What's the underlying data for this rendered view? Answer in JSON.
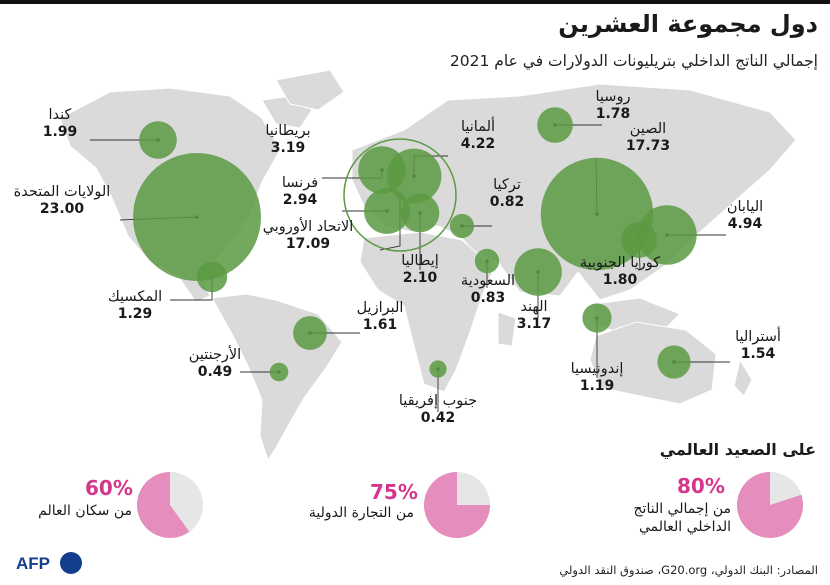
{
  "title": "دول مجموعة العشرين",
  "subtitle": "إجمالي الناتج الداخلي بتريليونات الدولارات في عام 2021",
  "chart_data": {
    "type": "bubble-map",
    "unit": "تريليونات الدولارات",
    "year": "2021",
    "points": [
      {
        "name": "الولايات المتحدة",
        "value": "23.00"
      },
      {
        "name": "الصين",
        "value": "17.73"
      },
      {
        "name": "الاتحاد الأوروبي",
        "value": "17.09"
      },
      {
        "name": "اليابان",
        "value": "4.94"
      },
      {
        "name": "ألمانيا",
        "value": "4.22"
      },
      {
        "name": "بريطانيا",
        "value": "3.19"
      },
      {
        "name": "الهند",
        "value": "3.17"
      },
      {
        "name": "فرنسا",
        "value": "2.94"
      },
      {
        "name": "إيطاليا",
        "value": "2.10"
      },
      {
        "name": "كندا",
        "value": "1.99"
      },
      {
        "name": "كوريا الجنوبية",
        "value": "1.80"
      },
      {
        "name": "روسيا",
        "value": "1.78"
      },
      {
        "name": "البرازيل",
        "value": "1.61"
      },
      {
        "name": "أستراليا",
        "value": "1.54"
      },
      {
        "name": "المكسيك",
        "value": "1.29"
      },
      {
        "name": "إندونيسيا",
        "value": "1.19"
      },
      {
        "name": "السعودية",
        "value": "0.83"
      },
      {
        "name": "تركيا",
        "value": "0.82"
      },
      {
        "name": "الأرجنتين",
        "value": "0.49"
      },
      {
        "name": "جنوب إفريقيا",
        "value": "0.42"
      }
    ]
  },
  "global": {
    "heading": "على الصعيد العالمي",
    "stats": [
      {
        "percent": "80%",
        "fraction": 0.8,
        "caption1": "من إجمالي الناتج",
        "caption2": "الداخلي العالمي"
      },
      {
        "percent": "75%",
        "fraction": 0.75,
        "caption1": "من التجارة الدولية",
        "caption2": ""
      },
      {
        "percent": "60%",
        "fraction": 0.6,
        "caption1": "من سكان العالم",
        "caption2": ""
      }
    ]
  },
  "colors": {
    "bubble": "#5a9a42",
    "land": "#dadada",
    "pie_fill": "#e58dbd",
    "pie_rest": "#e6e6e6",
    "accent": "#d4368c"
  },
  "logo": {
    "text": "AFP"
  },
  "source": {
    "text": "المصادر: البنك الدولي، G20.org، صندوق النقد الدولي"
  }
}
